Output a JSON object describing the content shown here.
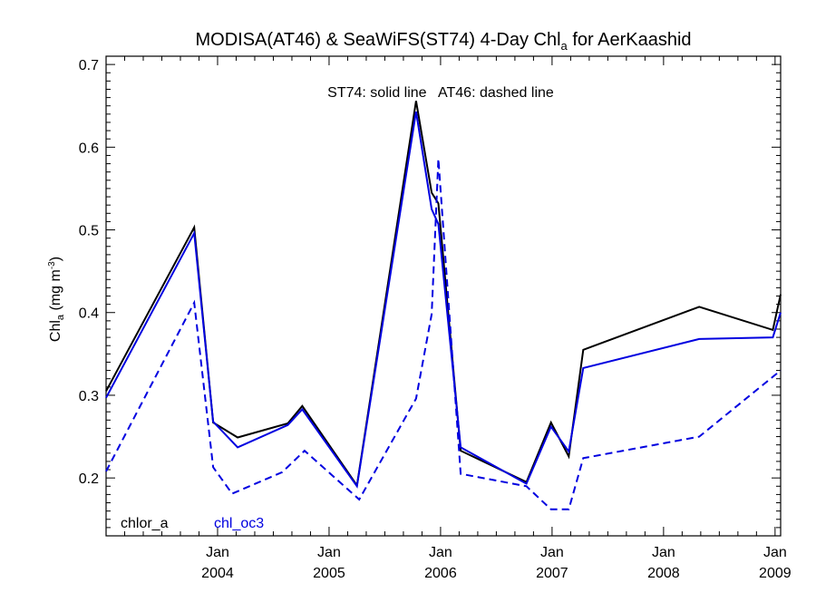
{
  "chart_data": {
    "type": "line",
    "title_main": "MODISA(AT46) & SeaWiFS(ST74) 4-Day Chl",
    "title_sub": "a",
    "title_tail": " for AerKaashid",
    "annotation": "ST74: solid line   AT46: dashed line",
    "ylabel_main": "Chl",
    "ylabel_sub": "a",
    "ylabel_unit": " (mg m",
    "ylabel_sup": "-3",
    "ylabel_close": ")",
    "ylim": [
      0.13,
      0.71
    ],
    "xlim": [
      2003.0,
      2009.05
    ],
    "yticks": [
      {
        "value": 0.2,
        "label": "0.2"
      },
      {
        "value": 0.3,
        "label": "0.3"
      },
      {
        "value": 0.4,
        "label": "0.4"
      },
      {
        "value": 0.5,
        "label": "0.5"
      },
      {
        "value": 0.6,
        "label": "0.6"
      },
      {
        "value": 0.7,
        "label": "0.7"
      }
    ],
    "xticks": [
      {
        "value": 2004.0,
        "month": "Jan",
        "year": "2004"
      },
      {
        "value": 2005.0,
        "month": "Jan",
        "year": "2005"
      },
      {
        "value": 2006.0,
        "month": "Jan",
        "year": "2006"
      },
      {
        "value": 2007.0,
        "month": "Jan",
        "year": "2007"
      },
      {
        "value": 2008.0,
        "month": "Jan",
        "year": "2008"
      },
      {
        "value": 2009.0,
        "month": "Jan",
        "year": "2009"
      }
    ],
    "legend": [
      {
        "label": "chlor_a",
        "color": "#000000"
      },
      {
        "label": "chl_oc3",
        "color": "#0000e0"
      }
    ],
    "series": [
      {
        "name": "chlor_a",
        "line": "solid",
        "color": "#000000",
        "x": [
          2003.0,
          2003.79,
          2003.96,
          2004.18,
          2004.63,
          2004.76,
          2005.25,
          2005.78,
          2005.92,
          2005.98,
          2006.18,
          2006.77,
          2006.99,
          2007.15,
          2007.28,
          2008.32,
          2008.98,
          2009.05
        ],
        "y": [
          0.305,
          0.503,
          0.267,
          0.249,
          0.266,
          0.287,
          0.191,
          0.656,
          0.545,
          0.532,
          0.233,
          0.195,
          0.267,
          0.226,
          0.355,
          0.407,
          0.379,
          0.422
        ]
      },
      {
        "name": "chl_oc3",
        "line": "solid",
        "color": "#0000e0",
        "x": [
          2003.0,
          2003.79,
          2003.96,
          2004.18,
          2004.63,
          2004.76,
          2005.25,
          2005.78,
          2005.92,
          2005.98,
          2006.18,
          2006.77,
          2006.99,
          2007.15,
          2007.28,
          2008.32,
          2008.98,
          2009.05
        ],
        "y": [
          0.297,
          0.496,
          0.268,
          0.237,
          0.264,
          0.283,
          0.19,
          0.643,
          0.525,
          0.507,
          0.237,
          0.193,
          0.262,
          0.232,
          0.333,
          0.368,
          0.37,
          0.4
        ]
      },
      {
        "name": "",
        "line": "dashed",
        "color": "#0000e0",
        "x": [
          2003.0,
          2003.79,
          2003.96,
          2004.13,
          2004.58,
          2004.78,
          2005.27,
          2005.78,
          2005.92,
          2005.98,
          2006.18,
          2006.77,
          2006.99,
          2007.15,
          2007.28,
          2008.32,
          2009.05
        ],
        "y": [
          0.208,
          0.412,
          0.213,
          0.181,
          0.207,
          0.233,
          0.174,
          0.296,
          0.398,
          0.586,
          0.205,
          0.19,
          0.162,
          0.162,
          0.224,
          0.25,
          0.33
        ]
      }
    ]
  }
}
